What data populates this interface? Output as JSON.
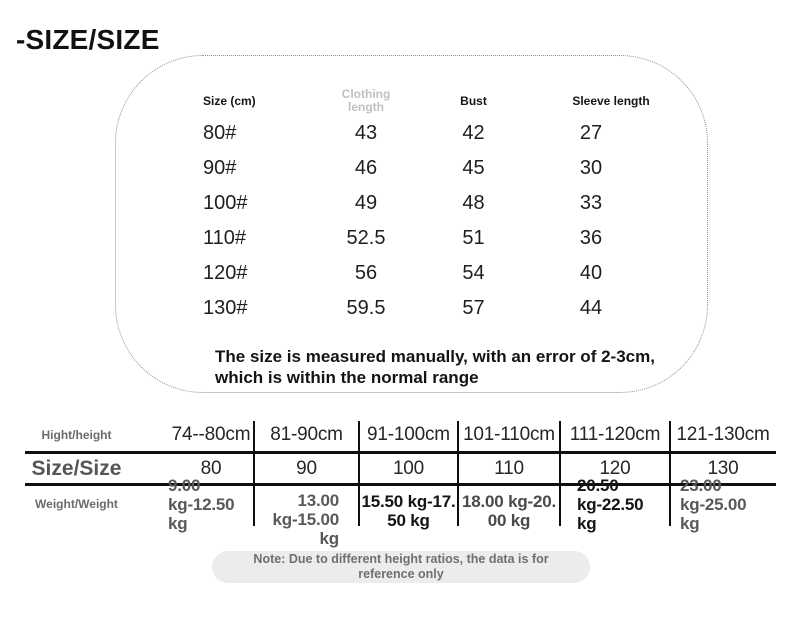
{
  "page_title": "-SIZE/SIZE",
  "size_chart": {
    "columns": [
      "Size (cm)",
      "Clothing length",
      "Bust",
      "Sleeve length"
    ],
    "rows": [
      {
        "size": "80#",
        "clothing_length": "43",
        "bust": "42",
        "sleeve_length": "27"
      },
      {
        "size": "90#",
        "clothing_length": "46",
        "bust": "45",
        "sleeve_length": "30"
      },
      {
        "size": "100#",
        "clothing_length": "49",
        "bust": "48",
        "sleeve_length": "33"
      },
      {
        "size": "110#",
        "clothing_length": "52.5",
        "bust": "51",
        "sleeve_length": "36"
      },
      {
        "size": "120#",
        "clothing_length": "56",
        "bust": "54",
        "sleeve_length": "40"
      },
      {
        "size": "130#",
        "clothing_length": "59.5",
        "bust": "57",
        "sleeve_length": "44"
      }
    ],
    "note": "The size is measured manually, with an error of 2-3cm,\nwhich is within the normal range"
  },
  "fit_table": {
    "row_labels": [
      "Hight/height",
      "Size/Size",
      "Weight/Weight"
    ],
    "heights": [
      "74--80cm",
      "81-90cm",
      "91-100cm",
      "101-110cm",
      "111-120cm",
      "121-130cm"
    ],
    "sizes": [
      "80",
      "90",
      "100",
      "110",
      "120",
      "130"
    ],
    "weights": [
      "9.00\nkg-12.50\nkg",
      "13.00\nkg-15.00\nkg",
      "15.50 kg-17.\n50 kg",
      "18.00 kg-20.\n00 kg",
      "20.50\nkg-22.50\nkg",
      "23.00\nkg-25.00\nkg"
    ]
  },
  "footer_note": "Note: Due to different height ratios, the data is for\nreference only",
  "colors": {
    "text_primary": "#1f1f1f",
    "text_muted_header": "#c1c1c1",
    "text_gray_label": "#6b6b6b",
    "table_line": "#0f0f0f",
    "pill_background": "#ececec",
    "background": "#ffffff"
  }
}
